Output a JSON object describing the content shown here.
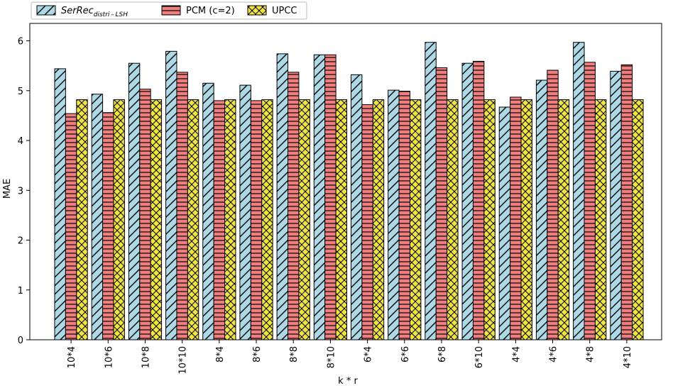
{
  "chart_data": {
    "type": "bar",
    "title": "",
    "xlabel": "k * r",
    "ylabel": "MAE",
    "ylim": [
      0,
      6.35
    ],
    "yticks": [
      0,
      1,
      2,
      3,
      4,
      5,
      6
    ],
    "legend_position": "top-left",
    "categories": [
      "10*4",
      "10*6",
      "10*8",
      "10*10",
      "8*4",
      "8*6",
      "8*8",
      "8*10",
      "6*4",
      "6*6",
      "6*8",
      "6*10",
      "4*4",
      "4*6",
      "4*8",
      "4*10"
    ],
    "series": [
      {
        "name": "SerRec",
        "subscript": "distri – LSH",
        "color": "#add8e6",
        "hatch": "diagonal",
        "values": [
          5.44,
          4.93,
          5.55,
          5.79,
          5.15,
          5.11,
          5.74,
          5.72,
          5.32,
          5.01,
          5.97,
          5.55,
          4.67,
          5.21,
          5.97,
          5.39
        ]
      },
      {
        "name": "PCM (c=2)",
        "color": "#f08080",
        "hatch": "horizontal",
        "values": [
          4.54,
          4.56,
          5.03,
          5.37,
          4.8,
          4.8,
          5.37,
          5.72,
          4.72,
          4.99,
          5.46,
          5.59,
          4.87,
          5.41,
          5.57,
          5.52
        ]
      },
      {
        "name": "UPCC",
        "color": "#f0e442",
        "hatch": "cross",
        "values": [
          4.82,
          4.82,
          4.82,
          4.82,
          4.82,
          4.82,
          4.82,
          4.82,
          4.82,
          4.82,
          4.82,
          4.82,
          4.82,
          4.82,
          4.82,
          4.82
        ]
      }
    ]
  }
}
